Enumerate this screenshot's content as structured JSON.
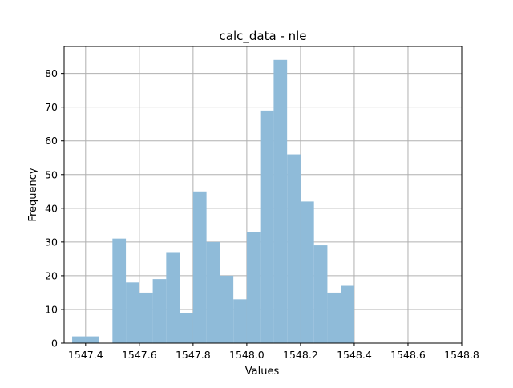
{
  "chart_data": {
    "type": "bar",
    "title": "calc_data - nle",
    "xlabel": "Values",
    "ylabel": "Frequency",
    "xlim": [
      1547.32,
      1548.8
    ],
    "ylim": [
      0,
      88
    ],
    "xticks": [
      1547.4,
      1547.6,
      1547.8,
      1548.0,
      1548.2,
      1548.4,
      1548.6,
      1548.8
    ],
    "xtick_labels": [
      "1547.4",
      "1547.6",
      "1547.8",
      "1548.0",
      "1548.2",
      "1548.4",
      "1548.6",
      "1548.8"
    ],
    "yticks": [
      0,
      10,
      20,
      30,
      40,
      50,
      60,
      70,
      80
    ],
    "ytick_labels": [
      "0",
      "10",
      "20",
      "30",
      "40",
      "50",
      "60",
      "70",
      "80"
    ],
    "grid": true,
    "bar_color": "#8fbbd9",
    "bins": [
      {
        "x0": 1547.35,
        "x1": 1547.45,
        "count": 2
      },
      {
        "x0": 1547.45,
        "x1": 1547.5,
        "count": 0
      },
      {
        "x0": 1547.5,
        "x1": 1547.55,
        "count": 31
      },
      {
        "x0": 1547.55,
        "x1": 1547.6,
        "count": 18
      },
      {
        "x0": 1547.6,
        "x1": 1547.65,
        "count": 15
      },
      {
        "x0": 1547.65,
        "x1": 1547.7,
        "count": 19
      },
      {
        "x0": 1547.7,
        "x1": 1547.75,
        "count": 27
      },
      {
        "x0": 1547.75,
        "x1": 1547.8,
        "count": 9
      },
      {
        "x0": 1547.8,
        "x1": 1547.85,
        "count": 45
      },
      {
        "x0": 1547.85,
        "x1": 1547.9,
        "count": 30
      },
      {
        "x0": 1547.9,
        "x1": 1547.95,
        "count": 20
      },
      {
        "x0": 1547.95,
        "x1": 1548.0,
        "count": 13
      },
      {
        "x0": 1548.0,
        "x1": 1548.05,
        "count": 33
      },
      {
        "x0": 1548.05,
        "x1": 1548.1,
        "count": 69
      },
      {
        "x0": 1548.1,
        "x1": 1548.15,
        "count": 84
      },
      {
        "x0": 1548.15,
        "x1": 1548.2,
        "count": 56
      },
      {
        "x0": 1548.2,
        "x1": 1548.25,
        "count": 42
      },
      {
        "x0": 1548.25,
        "x1": 1548.3,
        "count": 29
      },
      {
        "x0": 1548.3,
        "x1": 1548.35,
        "count": 15
      },
      {
        "x0": 1548.35,
        "x1": 1548.4,
        "count": 17
      }
    ]
  }
}
